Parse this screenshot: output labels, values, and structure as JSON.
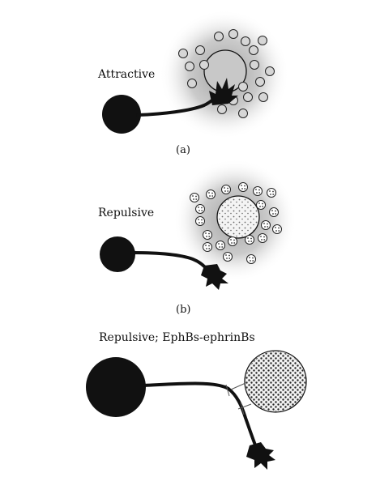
{
  "panels": [
    {
      "label": "Attractive",
      "caption": "(a)"
    },
    {
      "label": "Repulsive",
      "caption": "(b)"
    },
    {
      "label": "Repulsive; EphBs-ephrinBs",
      "caption": ""
    }
  ],
  "colors": {
    "neuron": "#111111",
    "halo": "#a0a0a0",
    "vesicle": "#d6d6d6",
    "target_plain": "#c8c8c8",
    "target_dotted": "#f2f2f2",
    "dots": "#222222"
  }
}
